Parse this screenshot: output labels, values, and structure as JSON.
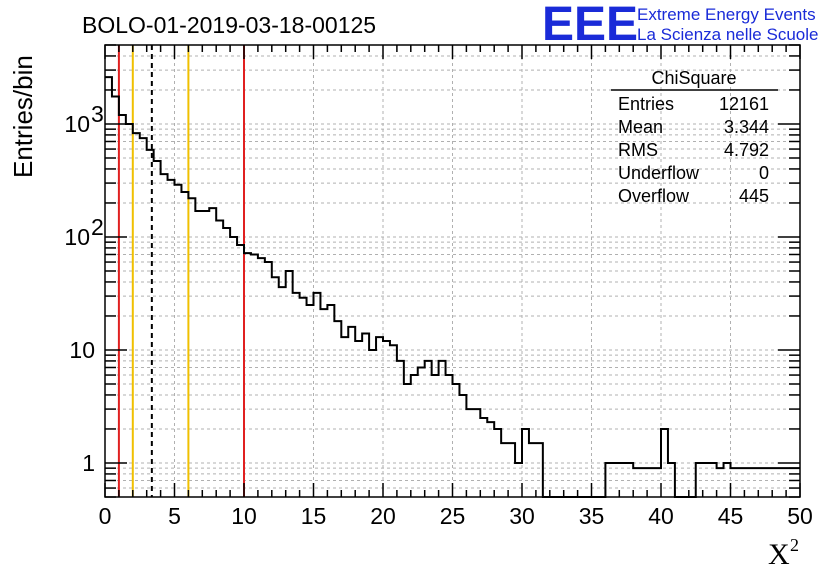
{
  "chart_data": {
    "type": "bar",
    "title": "BOLO-01-2019-03-18-00125",
    "xlabel": "X",
    "xlabel_superscript": "2",
    "ylabel": "Entries/bin",
    "xlim": [
      0,
      50
    ],
    "ylim": [
      0.5,
      5000
    ],
    "yscale": "log",
    "grid": true,
    "bin_width": 0.5,
    "x_ticks": [
      "0",
      "5",
      "10",
      "15",
      "20",
      "25",
      "30",
      "35",
      "40",
      "45",
      "50"
    ],
    "y_ticks": [
      {
        "value": 1,
        "base": "1",
        "exp": ""
      },
      {
        "value": 10,
        "base": "10",
        "exp": ""
      },
      {
        "value": 100,
        "base": "10",
        "exp": "2"
      },
      {
        "value": 1000,
        "base": "10",
        "exp": "3"
      }
    ],
    "values": [
      2600,
      1750,
      1200,
      1000,
      830,
      750,
      590,
      470,
      360,
      320,
      290,
      250,
      220,
      170,
      170,
      180,
      140,
      120,
      100,
      85,
      72,
      70,
      65,
      60,
      44,
      36,
      50,
      32,
      29,
      25,
      32,
      23,
      25,
      18,
      13,
      16,
      12,
      14,
      10,
      13,
      12,
      11,
      8,
      5,
      6,
      7,
      8,
      6,
      8,
      6,
      5,
      4,
      3,
      3,
      2.5,
      2.3,
      2,
      1.5,
      1.5,
      1,
      2,
      1.5,
      1.5,
      0.5,
      0,
      0,
      0,
      0,
      0,
      0,
      0,
      0,
      1,
      1,
      1,
      1,
      0.9,
      0.9,
      0.9,
      0.9,
      2,
      1,
      0,
      0,
      0,
      1,
      1,
      1,
      0.9,
      1,
      0.9,
      0.9,
      0.9,
      0.9,
      0.9,
      0.9,
      0.9,
      0.9,
      0.9,
      0.9
    ],
    "reference_lines": [
      {
        "x": 1,
        "color": "#e02020",
        "style": "solid"
      },
      {
        "x": 2,
        "color": "#f0c000",
        "style": "solid"
      },
      {
        "x": 3.37,
        "color": "#000000",
        "style": "dashed"
      },
      {
        "x": 6,
        "color": "#f0c000",
        "style": "solid"
      },
      {
        "x": 10,
        "color": "#e02020",
        "style": "solid"
      }
    ],
    "stats_box": {
      "title": "ChiSquare",
      "rows": [
        {
          "label": "Entries",
          "value": "12161"
        },
        {
          "label": "Mean",
          "value": "3.344"
        },
        {
          "label": "RMS",
          "value": "4.792"
        },
        {
          "label": "Underflow",
          "value": "0"
        },
        {
          "label": "Overflow",
          "value": "445"
        }
      ]
    }
  },
  "logo": {
    "letters": "EEE",
    "line1": "Extreme Energy Events",
    "line2": "La Scienza nelle Scuole",
    "color": "#1a2bd8"
  }
}
